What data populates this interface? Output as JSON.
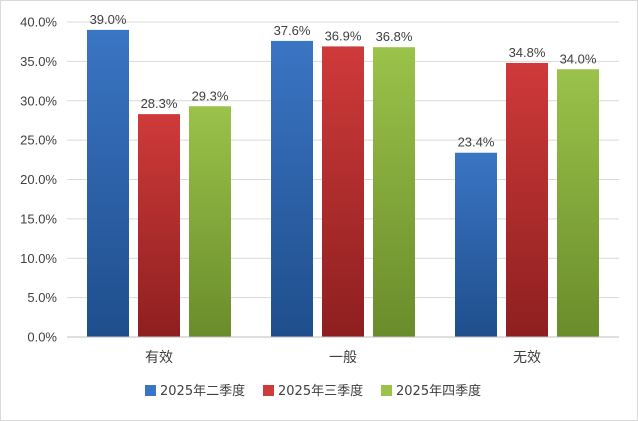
{
  "chart_data": {
    "type": "bar",
    "categories": [
      "有效",
      "一般",
      "无效"
    ],
    "series": [
      {
        "name": "2025年二季度",
        "values": [
          39.0,
          37.6,
          23.4
        ],
        "color": "#3a75c4",
        "color_dark": "#1f4e8c"
      },
      {
        "name": "2025年三季度",
        "values": [
          28.3,
          36.9,
          34.8
        ],
        "color": "#cf3a3a",
        "color_dark": "#8e1f1f"
      },
      {
        "name": "2025年四季度",
        "values": [
          29.3,
          36.8,
          34.0
        ],
        "color": "#9bc24a",
        "color_dark": "#6a8c2b"
      }
    ],
    "ylim": [
      0,
      40
    ],
    "yticks": [
      0,
      5,
      10,
      15,
      20,
      25,
      30,
      35,
      40
    ],
    "ytick_labels": [
      "0.0%",
      "5.0%",
      "10.0%",
      "15.0%",
      "20.0%",
      "25.0%",
      "30.0%",
      "35.0%",
      "40.0%"
    ],
    "data_labels": [
      [
        "39.0%",
        "37.6%",
        "23.4%"
      ],
      [
        "28.3%",
        "36.9%",
        "34.8%"
      ],
      [
        "29.3%",
        "36.8%",
        "34.0%"
      ]
    ],
    "grid": true,
    "legend_position": "bottom"
  }
}
